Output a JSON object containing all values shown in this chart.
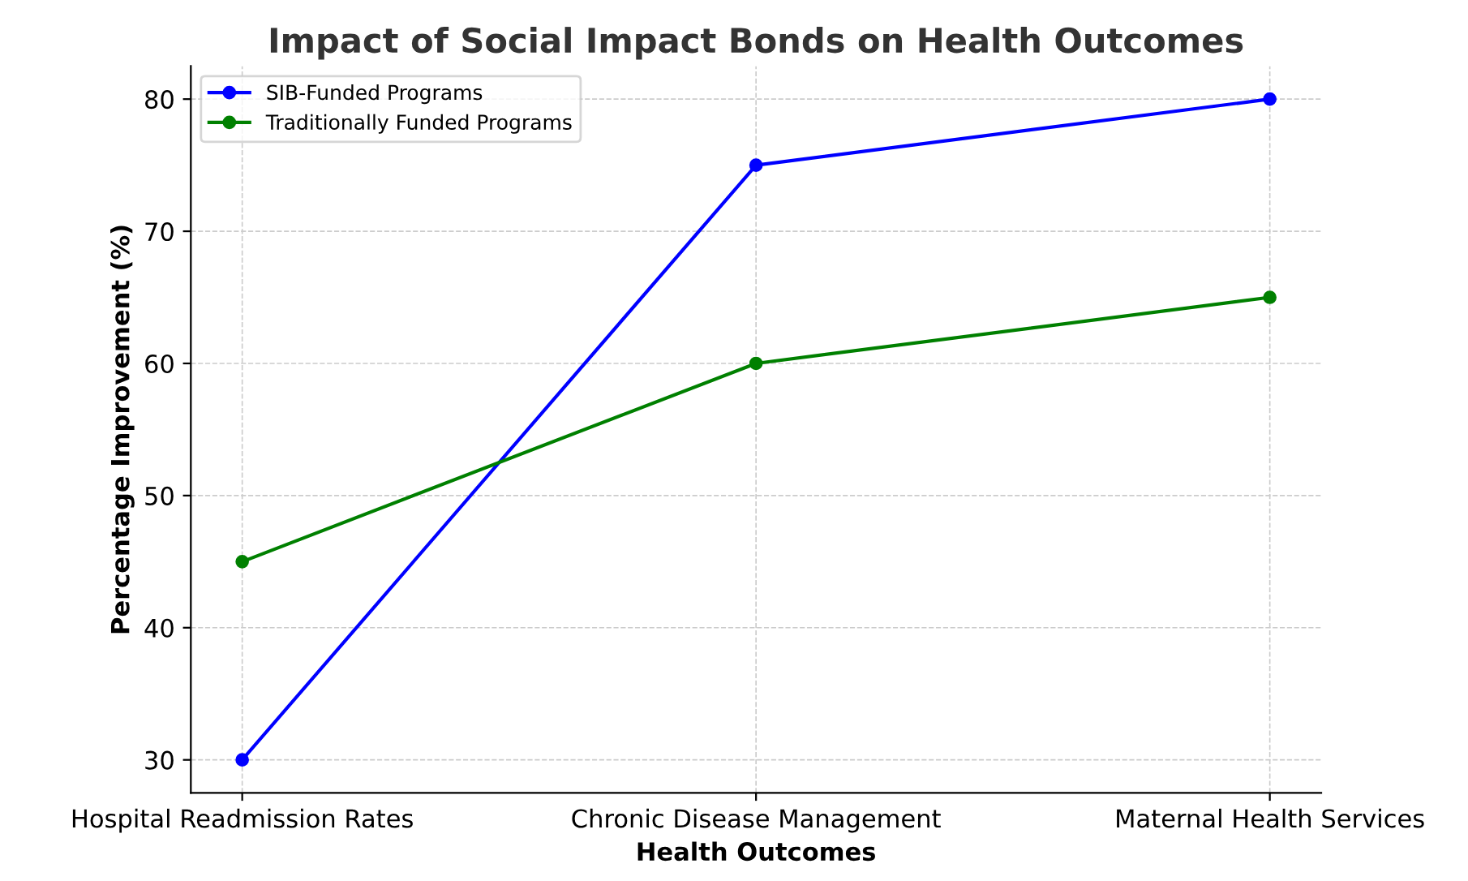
{
  "chart_data": {
    "type": "line",
    "title": "Impact of Social Impact Bonds on Health Outcomes",
    "xlabel": "Health Outcomes",
    "ylabel": "Percentage Improvement (%)",
    "categories": [
      "Hospital Readmission Rates",
      "Chronic Disease Management",
      "Maternal Health Services"
    ],
    "series": [
      {
        "name": "SIB-Funded Programs",
        "color": "#0000ff",
        "values": [
          30,
          75,
          80
        ]
      },
      {
        "name": "Traditionally Funded Programs",
        "color": "#008000",
        "values": [
          45,
          60,
          65
        ]
      }
    ],
    "ylim": [
      27.5,
      82.5
    ],
    "yticks": [
      30,
      40,
      50,
      60,
      70,
      80
    ],
    "grid": true,
    "legend": "top left",
    "marker": "circle",
    "line_style": "solid"
  }
}
